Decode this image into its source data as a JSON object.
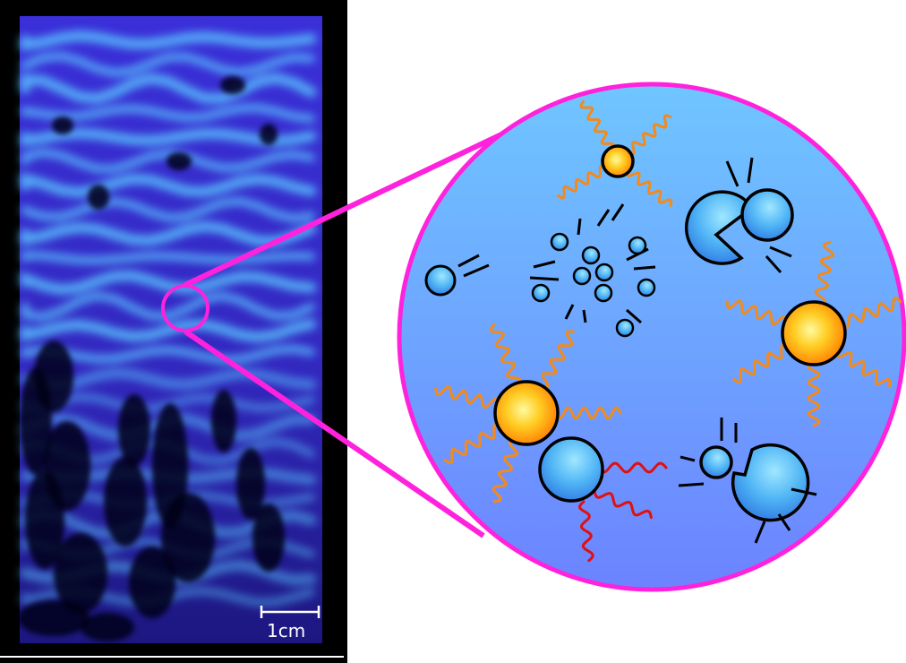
{
  "micrograph": {
    "scale_bar_label": "1cm",
    "background": "#000000",
    "wave_color": "#3b2fd6",
    "glow_color": "#5ac8ff"
  },
  "zoom": {
    "ring_color": "#ff22dd",
    "fill_top": "#6fc6ff",
    "fill_bottom": "#6c83ff"
  },
  "particles": {
    "radiating_color": "#ffaa22",
    "wave_orange": "#f28a1c",
    "wave_red": "#e01010",
    "molecule_color": "#3aa6f0"
  }
}
